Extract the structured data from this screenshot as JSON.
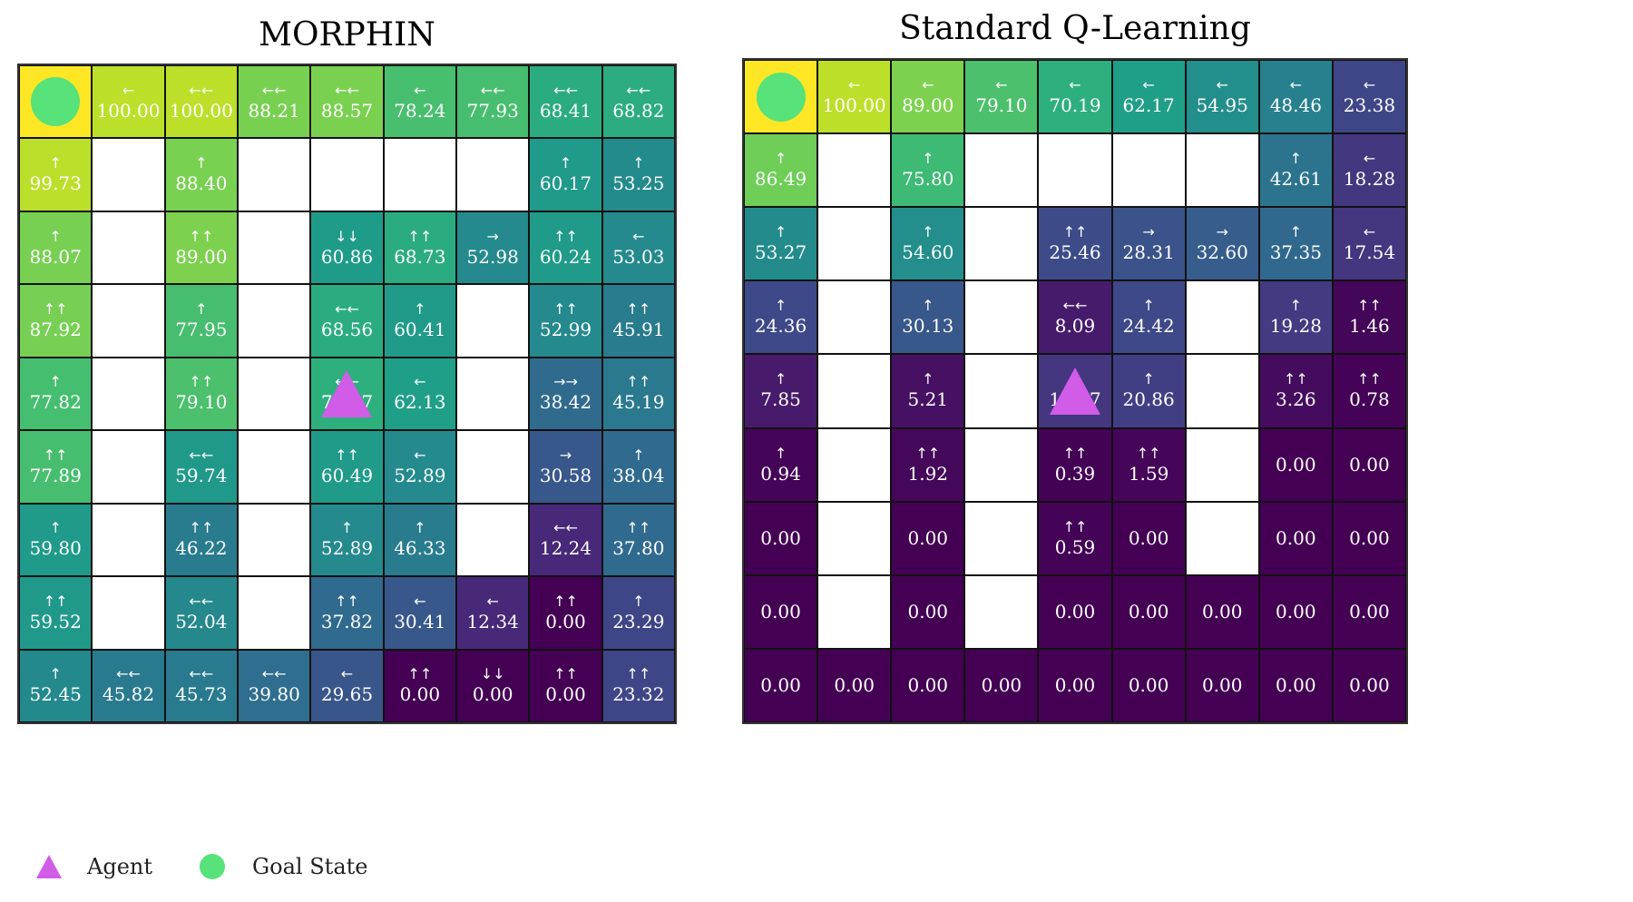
{
  "chart_data": {
    "type": "heatmap",
    "colors": {
      "goal_cell": "#fde725",
      "goal_marker": "#57e27a",
      "agent_marker": "#d15ce8",
      "wall": "#ffffff"
    },
    "panels": [
      {
        "title": "MORPHIN",
        "goal": [
          0,
          0
        ],
        "agent": [
          4,
          4
        ],
        "rows": [
          [
            {
              "v": null,
              "a": ""
            },
            {
              "v": 100.0,
              "a": "←"
            },
            {
              "v": 100.0,
              "a": "←←"
            },
            {
              "v": 88.21,
              "a": "←←"
            },
            {
              "v": 88.57,
              "a": "←←"
            },
            {
              "v": 78.24,
              "a": "←"
            },
            {
              "v": 77.93,
              "a": "←←"
            },
            {
              "v": 68.41,
              "a": "←←"
            },
            {
              "v": 68.82,
              "a": "←←"
            }
          ],
          [
            {
              "v": 99.73,
              "a": "↑"
            },
            null,
            {
              "v": 88.4,
              "a": "↑"
            },
            null,
            null,
            null,
            null,
            {
              "v": 60.17,
              "a": "↑"
            },
            {
              "v": 53.25,
              "a": "↑"
            }
          ],
          [
            {
              "v": 88.07,
              "a": "↑"
            },
            null,
            {
              "v": 89.0,
              "a": "↑↑"
            },
            null,
            {
              "v": 60.86,
              "a": "↓↓"
            },
            {
              "v": 68.73,
              "a": "↑↑"
            },
            {
              "v": 52.98,
              "a": "→"
            },
            {
              "v": 60.24,
              "a": "↑↑"
            },
            {
              "v": 53.03,
              "a": "←"
            }
          ],
          [
            {
              "v": 87.92,
              "a": "↑↑"
            },
            null,
            {
              "v": 77.95,
              "a": "↑"
            },
            null,
            {
              "v": 68.56,
              "a": "←←"
            },
            {
              "v": 60.41,
              "a": "↑"
            },
            null,
            {
              "v": 52.99,
              "a": "↑↑"
            },
            {
              "v": 45.91,
              "a": "↑↑"
            }
          ],
          [
            {
              "v": 77.82,
              "a": "↑"
            },
            null,
            {
              "v": 79.1,
              "a": "↑↑"
            },
            null,
            {
              "v": 70.17,
              "a": "←←"
            },
            {
              "v": 62.13,
              "a": "←"
            },
            null,
            {
              "v": 38.42,
              "a": "→→"
            },
            {
              "v": 45.19,
              "a": "↑↑"
            }
          ],
          [
            {
              "v": 77.89,
              "a": "↑↑"
            },
            null,
            {
              "v": 59.74,
              "a": "←←"
            },
            null,
            {
              "v": 60.49,
              "a": "↑↑"
            },
            {
              "v": 52.89,
              "a": "←"
            },
            null,
            {
              "v": 30.58,
              "a": "→"
            },
            {
              "v": 38.04,
              "a": "↑"
            }
          ],
          [
            {
              "v": 59.8,
              "a": "↑"
            },
            null,
            {
              "v": 46.22,
              "a": "↑↑"
            },
            null,
            {
              "v": 52.89,
              "a": "↑"
            },
            {
              "v": 46.33,
              "a": "↑"
            },
            null,
            {
              "v": 12.24,
              "a": "←←"
            },
            {
              "v": 37.8,
              "a": "↑↑"
            }
          ],
          [
            {
              "v": 59.52,
              "a": "↑↑"
            },
            null,
            {
              "v": 52.04,
              "a": "←←"
            },
            null,
            {
              "v": 37.82,
              "a": "↑↑"
            },
            {
              "v": 30.41,
              "a": "←"
            },
            {
              "v": 12.34,
              "a": "←"
            },
            {
              "v": 0.0,
              "a": "↑↑"
            },
            {
              "v": 23.29,
              "a": "↑"
            }
          ],
          [
            {
              "v": 52.45,
              "a": "↑"
            },
            {
              "v": 45.82,
              "a": "←←"
            },
            {
              "v": 45.73,
              "a": "←←"
            },
            {
              "v": 39.8,
              "a": "←←"
            },
            {
              "v": 29.65,
              "a": "←"
            },
            {
              "v": 0.0,
              "a": "↑↑"
            },
            {
              "v": 0.0,
              "a": "↓↓"
            },
            {
              "v": 0.0,
              "a": "↑↑"
            },
            {
              "v": 23.32,
              "a": "↑↑"
            }
          ]
        ]
      },
      {
        "title": "Standard Q-Learning",
        "goal": [
          0,
          0
        ],
        "agent": [
          4,
          4
        ],
        "rows": [
          [
            {
              "v": null,
              "a": ""
            },
            {
              "v": 100.0,
              "a": "←"
            },
            {
              "v": 89.0,
              "a": "←"
            },
            {
              "v": 79.1,
              "a": "←"
            },
            {
              "v": 70.19,
              "a": "←"
            },
            {
              "v": 62.17,
              "a": "←"
            },
            {
              "v": 54.95,
              "a": "←"
            },
            {
              "v": 48.46,
              "a": "←"
            },
            {
              "v": 23.38,
              "a": "←"
            }
          ],
          [
            {
              "v": 86.49,
              "a": "↑"
            },
            null,
            {
              "v": 75.8,
              "a": "↑"
            },
            null,
            null,
            null,
            null,
            {
              "v": 42.61,
              "a": "↑"
            },
            {
              "v": 18.28,
              "a": "←"
            }
          ],
          [
            {
              "v": 53.27,
              "a": "↑"
            },
            null,
            {
              "v": 54.6,
              "a": "↑"
            },
            null,
            {
              "v": 25.46,
              "a": "↑↑"
            },
            {
              "v": 28.31,
              "a": "→"
            },
            {
              "v": 32.6,
              "a": "→"
            },
            {
              "v": 37.35,
              "a": "↑"
            },
            {
              "v": 17.54,
              "a": "←"
            }
          ],
          [
            {
              "v": 24.36,
              "a": "↑"
            },
            null,
            {
              "v": 30.13,
              "a": "↑"
            },
            null,
            {
              "v": 8.09,
              "a": "←←"
            },
            {
              "v": 24.42,
              "a": "↑"
            },
            null,
            {
              "v": 19.28,
              "a": "↑"
            },
            {
              "v": 1.46,
              "a": "↑↑"
            }
          ],
          [
            {
              "v": 7.85,
              "a": "↑"
            },
            null,
            {
              "v": 5.21,
              "a": "↑"
            },
            null,
            {
              "v": 17.57,
              "a": "←"
            },
            {
              "v": 20.86,
              "a": "↑"
            },
            null,
            {
              "v": 3.26,
              "a": "↑↑"
            },
            {
              "v": 0.78,
              "a": "↑↑"
            }
          ],
          [
            {
              "v": 0.94,
              "a": "↑"
            },
            null,
            {
              "v": 1.92,
              "a": "↑↑"
            },
            null,
            {
              "v": 0.39,
              "a": "↑↑"
            },
            {
              "v": 1.59,
              "a": "↑↑"
            },
            null,
            {
              "v": 0.0,
              "a": ""
            },
            {
              "v": 0.0,
              "a": ""
            }
          ],
          [
            {
              "v": 0.0,
              "a": ""
            },
            null,
            {
              "v": 0.0,
              "a": ""
            },
            null,
            {
              "v": 0.59,
              "a": "↑↑"
            },
            {
              "v": 0.0,
              "a": ""
            },
            null,
            {
              "v": 0.0,
              "a": ""
            },
            {
              "v": 0.0,
              "a": ""
            }
          ],
          [
            {
              "v": 0.0,
              "a": ""
            },
            null,
            {
              "v": 0.0,
              "a": ""
            },
            null,
            {
              "v": 0.0,
              "a": ""
            },
            {
              "v": 0.0,
              "a": ""
            },
            {
              "v": 0.0,
              "a": ""
            },
            {
              "v": 0.0,
              "a": ""
            },
            {
              "v": 0.0,
              "a": ""
            }
          ],
          [
            {
              "v": 0.0,
              "a": ""
            },
            {
              "v": 0.0,
              "a": ""
            },
            {
              "v": 0.0,
              "a": ""
            },
            {
              "v": 0.0,
              "a": ""
            },
            {
              "v": 0.0,
              "a": ""
            },
            {
              "v": 0.0,
              "a": ""
            },
            {
              "v": 0.0,
              "a": ""
            },
            {
              "v": 0.0,
              "a": ""
            },
            {
              "v": 0.0,
              "a": ""
            }
          ]
        ]
      }
    ],
    "legend": {
      "agent_label": "Agent",
      "goal_label": "Goal State"
    }
  }
}
